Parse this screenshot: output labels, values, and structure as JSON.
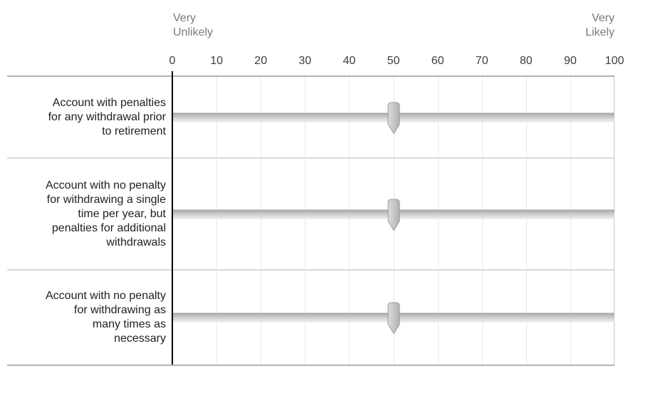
{
  "scale": {
    "left_label": "Very\nUnlikely",
    "right_label": "Very\nLikely",
    "ticks": [
      "0",
      "10",
      "20",
      "30",
      "40",
      "50",
      "60",
      "70",
      "80",
      "90",
      "100"
    ],
    "min": 0,
    "max": 100
  },
  "rows": [
    {
      "label": "Account with penalties\nfor any withdrawal prior\nto retirement",
      "value": 50
    },
    {
      "label": "Account with no penalty\nfor withdrawing a single\ntime per year, but\npenalties for additional\nwithdrawals",
      "value": 50
    },
    {
      "label": "Account with no penalty\nfor withdrawing as\nmany times as\nnecessary",
      "value": 50
    }
  ],
  "colors": {
    "axis_line": "#000000",
    "table_border": "#b3b3b3",
    "row_divider": "#d9d9d9",
    "gridline": "#e7e7e7",
    "right_edge": "#c9c9c9",
    "track_top": "#9d9d9d",
    "track_bottom": "#ececec",
    "handle_fill": "#c7c7c7",
    "handle_border": "#999999",
    "anchor_text": "#7a7a7a",
    "tick_text": "#3d3d3d",
    "row_label_text": "#212121"
  }
}
